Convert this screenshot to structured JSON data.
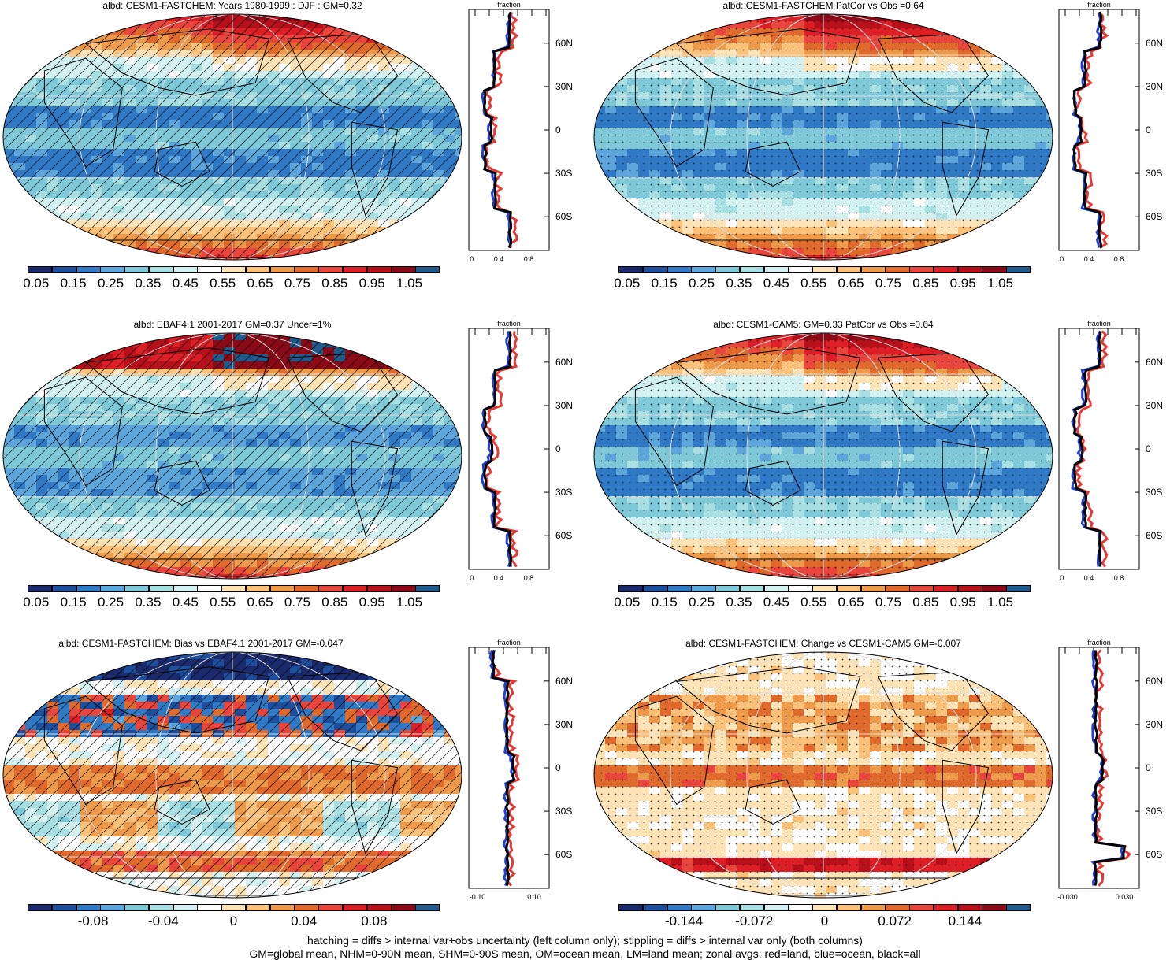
{
  "panels": [
    {
      "title": "albd: CESM1-FASTCHEM: Years 1980-1999 : DJF : GM=0.32",
      "legend_ticks": [
        "0.05",
        "0.15",
        "0.25",
        "0.35",
        "0.45",
        "0.55",
        "0.65",
        "0.75",
        "0.85",
        "0.95",
        "1.05"
      ],
      "profile_xticks": [
        "0.0",
        "0.4",
        "0.8"
      ],
      "overlay": "hatching",
      "kind": "abs"
    },
    {
      "title": "albd: CESM1-FASTCHEM PatCor vs Obs =0.64",
      "legend_ticks": [
        "0.05",
        "0.15",
        "0.25",
        "0.35",
        "0.45",
        "0.55",
        "0.65",
        "0.75",
        "0.85",
        "0.95",
        "1.05"
      ],
      "profile_xticks": [
        "0.0",
        "0.4",
        "0.8"
      ],
      "overlay": "stipple",
      "kind": "abs"
    },
    {
      "title": "albd: EBAF4.1 2001-2017 GM=0.37 Uncer=1%",
      "legend_ticks": [
        "0.05",
        "0.15",
        "0.25",
        "0.35",
        "0.45",
        "0.55",
        "0.65",
        "0.75",
        "0.85",
        "0.95",
        "1.05"
      ],
      "profile_xticks": [
        "0.0",
        "0.4",
        "0.8"
      ],
      "overlay": "hatching",
      "kind": "obs"
    },
    {
      "title": "albd: CESM1-CAM5: GM=0.33 PatCor vs Obs =0.64",
      "legend_ticks": [
        "0.05",
        "0.15",
        "0.25",
        "0.35",
        "0.45",
        "0.55",
        "0.65",
        "0.75",
        "0.85",
        "0.95",
        "1.05"
      ],
      "profile_xticks": [
        "0.0",
        "0.4",
        "0.8"
      ],
      "overlay": "stipple",
      "kind": "abs"
    },
    {
      "title": "albd: CESM1-FASTCHEM: Bias vs EBAF4.1 2001-2017 GM=-0.047",
      "legend_ticks": [
        "-0.08",
        "-0.04",
        "0",
        "0.04",
        "0.08"
      ],
      "profile_xticks": [
        "-0.10",
        "0.10"
      ],
      "overlay": "hatching",
      "kind": "bias"
    },
    {
      "title": "albd: CESM1-FASTCHEM: Change vs CESM1-CAM5 GM=-0.007",
      "legend_ticks": [
        "-0.144",
        "-0.072",
        "0",
        "0.072",
        "0.144"
      ],
      "profile_xticks": [
        "-0.030",
        "0.030"
      ],
      "overlay": "stipple",
      "kind": "change"
    }
  ],
  "profile": {
    "top_label": "fraction",
    "lat_labels": [
      "60N",
      "30N",
      "0",
      "30S",
      "60S"
    ]
  },
  "colors": {
    "palette": [
      "#1b2a6b",
      "#1d4f9c",
      "#2f79c5",
      "#5ca6dc",
      "#7ec8d8",
      "#a8dfe3",
      "#d4f1f2",
      "#ffffff",
      "#fde3b5",
      "#f9c179",
      "#ee9a4b",
      "#e06a2c",
      "#e8453c",
      "#dc1f26",
      "#b8101b",
      "#8b0a17",
      "#1f5a8a"
    ],
    "land": "#e53935",
    "ocean": "#1e3ed6",
    "all": "#000000"
  },
  "footer": {
    "line1": "hatching = diffs > internal var+obs uncertainty (left column only); stippling = diffs > internal var only (both columns)",
    "line2": "GM=global mean, NHM=0-90N mean, SHM=0-90S mean, OM=ocean mean, LM=land mean; zonal avgs: red=land, blue=ocean, black=all"
  }
}
